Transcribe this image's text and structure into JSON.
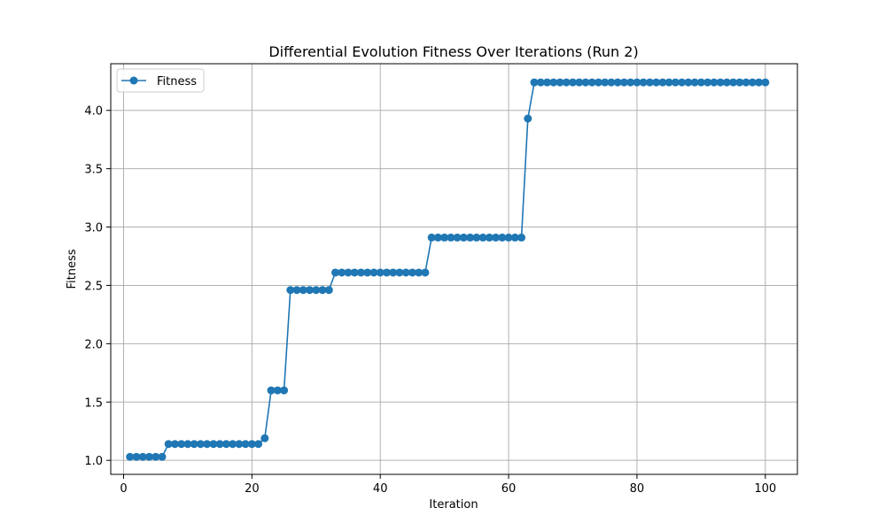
{
  "chart_data": {
    "type": "line",
    "title": "Differential Evolution Fitness Over Iterations (Run 2)",
    "xlabel": "Iteration",
    "ylabel": "Fitness",
    "xlim": [
      -2,
      105
    ],
    "ylim": [
      0.88,
      4.4
    ],
    "xticks": [
      0,
      20,
      40,
      60,
      80,
      100
    ],
    "yticks": [
      1.0,
      1.5,
      2.0,
      2.5,
      3.0,
      3.5,
      4.0
    ],
    "xtick_labels": [
      "0",
      "20",
      "40",
      "60",
      "80",
      "100"
    ],
    "ytick_labels": [
      "1.0",
      "1.5",
      "2.0",
      "2.5",
      "3.0",
      "3.5",
      "4.0"
    ],
    "grid": true,
    "legend_position": "top-left",
    "series": [
      {
        "name": "Fitness",
        "color": "#1f77b4",
        "marker": "circle",
        "x": [
          1,
          2,
          3,
          4,
          5,
          6,
          7,
          8,
          9,
          10,
          11,
          12,
          13,
          14,
          15,
          16,
          17,
          18,
          19,
          20,
          21,
          22,
          23,
          24,
          25,
          26,
          27,
          28,
          29,
          30,
          31,
          32,
          33,
          34,
          35,
          36,
          37,
          38,
          39,
          40,
          41,
          42,
          43,
          44,
          45,
          46,
          47,
          48,
          49,
          50,
          51,
          52,
          53,
          54,
          55,
          56,
          57,
          58,
          59,
          60,
          61,
          62,
          63,
          64,
          65,
          66,
          67,
          68,
          69,
          70,
          71,
          72,
          73,
          74,
          75,
          76,
          77,
          78,
          79,
          80,
          81,
          82,
          83,
          84,
          85,
          86,
          87,
          88,
          89,
          90,
          91,
          92,
          93,
          94,
          95,
          96,
          97,
          98,
          99,
          100
        ],
        "y": [
          1.03,
          1.03,
          1.03,
          1.03,
          1.03,
          1.03,
          1.14,
          1.14,
          1.14,
          1.14,
          1.14,
          1.14,
          1.14,
          1.14,
          1.14,
          1.14,
          1.14,
          1.14,
          1.14,
          1.14,
          1.14,
          1.19,
          1.6,
          1.6,
          1.6,
          2.46,
          2.46,
          2.46,
          2.46,
          2.46,
          2.46,
          2.46,
          2.61,
          2.61,
          2.61,
          2.61,
          2.61,
          2.61,
          2.61,
          2.61,
          2.61,
          2.61,
          2.61,
          2.61,
          2.61,
          2.61,
          2.61,
          2.91,
          2.91,
          2.91,
          2.91,
          2.91,
          2.91,
          2.91,
          2.91,
          2.91,
          2.91,
          2.91,
          2.91,
          2.91,
          2.91,
          2.91,
          3.93,
          4.24,
          4.24,
          4.24,
          4.24,
          4.24,
          4.24,
          4.24,
          4.24,
          4.24,
          4.24,
          4.24,
          4.24,
          4.24,
          4.24,
          4.24,
          4.24,
          4.24,
          4.24,
          4.24,
          4.24,
          4.24,
          4.24,
          4.24,
          4.24,
          4.24,
          4.24,
          4.24,
          4.24,
          4.24,
          4.24,
          4.24,
          4.24,
          4.24,
          4.24,
          4.24,
          4.24,
          4.24
        ]
      }
    ]
  }
}
